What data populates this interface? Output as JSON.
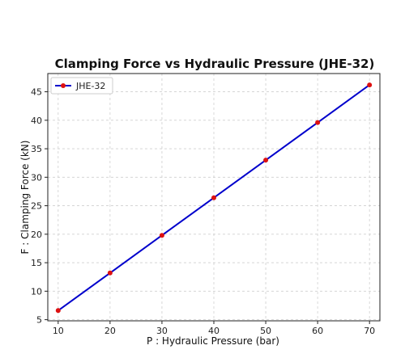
{
  "chart_data": {
    "type": "line",
    "title": "Clamping Force vs Hydraulic Pressure (JHE-32)",
    "xlabel": "P : Hydraulic Pressure (bar)",
    "ylabel": "F : Clamping Force (kN)",
    "xlim": [
      8,
      72
    ],
    "ylim": [
      4.8,
      48.2
    ],
    "xticks": [
      10,
      20,
      30,
      40,
      50,
      60,
      70
    ],
    "yticks": [
      5,
      10,
      15,
      20,
      25,
      30,
      35,
      40,
      45
    ],
    "grid": true,
    "legend_position": "top-left",
    "x": [
      10,
      20,
      30,
      40,
      50,
      60,
      70
    ],
    "series": [
      {
        "name": "JHE-32",
        "values": [
          6.6,
          13.2,
          19.8,
          26.4,
          33.0,
          39.6,
          46.2
        ],
        "line_color": "#0000cc",
        "marker_color": "#dd1111"
      }
    ]
  }
}
